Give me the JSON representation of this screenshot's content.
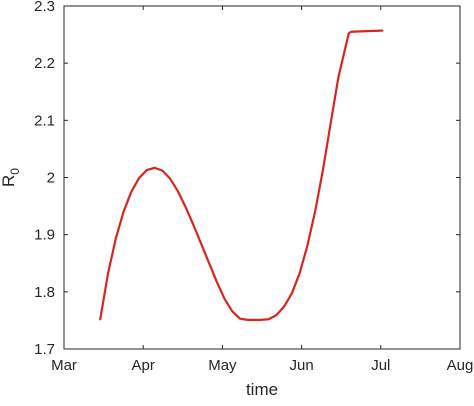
{
  "chart_data": {
    "type": "line",
    "xlabel": "time",
    "ylabel": "R",
    "ylabel_subscript": "0",
    "x_ticks": [
      "Mar",
      "Apr",
      "May",
      "Jun",
      "Jul",
      "Aug"
    ],
    "y_ticks": [
      "1.7",
      "1.8",
      "1.9",
      "2",
      "2.1",
      "2.2",
      "2.3"
    ],
    "xlim": [
      "2020-03-01",
      "2020-08-01"
    ],
    "ylim": [
      1.7,
      2.3
    ],
    "grid": false,
    "line_color": "#d7261e",
    "series": [
      {
        "x": [
          "2020-03-15",
          "2020-03-18",
          "2020-03-21",
          "2020-03-24",
          "2020-03-27",
          "2020-03-30",
          "2020-04-02",
          "2020-04-05",
          "2020-04-08",
          "2020-04-11",
          "2020-04-14",
          "2020-04-17",
          "2020-04-20",
          "2020-04-23",
          "2020-04-26",
          "2020-04-29",
          "2020-05-02",
          "2020-05-05",
          "2020-05-08",
          "2020-05-11",
          "2020-05-13",
          "2020-05-16",
          "2020-05-19",
          "2020-05-22",
          "2020-05-25",
          "2020-05-28",
          "2020-05-31",
          "2020-06-03",
          "2020-06-06",
          "2020-06-09",
          "2020-06-12",
          "2020-06-15",
          "2020-06-19",
          "2020-06-20",
          "2020-06-26",
          "2020-07-02"
        ],
        "y": [
          1.752,
          1.832,
          1.893,
          1.94,
          1.975,
          1.999,
          2.013,
          2.017,
          2.012,
          1.998,
          1.976,
          1.948,
          1.917,
          1.884,
          1.851,
          1.818,
          1.788,
          1.766,
          1.753,
          1.751,
          1.751,
          1.751,
          1.752,
          1.759,
          1.774,
          1.797,
          1.832,
          1.88,
          1.94,
          2.012,
          2.094,
          2.175,
          2.252,
          2.255,
          2.256,
          2.257
        ]
      }
    ]
  }
}
